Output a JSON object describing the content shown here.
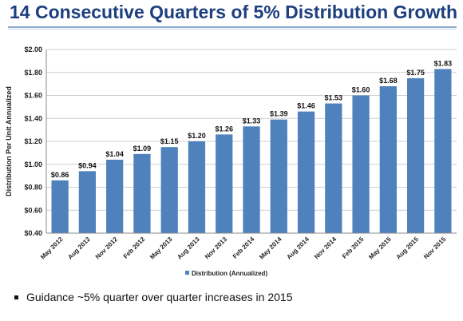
{
  "title": "14 Consecutive Quarters of 5% Distribution Growth",
  "bullet": "Guidance ~5% quarter over quarter increases in 2015",
  "chart_data": {
    "type": "bar",
    "title": "",
    "xlabel": "",
    "ylabel": "Distribution Per Unit Annualized",
    "ylim": [
      0.4,
      2.0
    ],
    "yticks": [
      "$0.40",
      "$0.60",
      "$0.80",
      "$1.00",
      "$1.20",
      "$1.40",
      "$1.60",
      "$1.80",
      "$2.00"
    ],
    "yticks_values": [
      0.4,
      0.6,
      0.8,
      1.0,
      1.2,
      1.4,
      1.6,
      1.8,
      2.0
    ],
    "categories": [
      "May 2012",
      "Aug 2012",
      "Nov 2012",
      "Feb 2012",
      "May 2013",
      "Aug 2013",
      "Nov 2013",
      "Feb 2014",
      "May 2014",
      "Aug 2014",
      "Nov 2014",
      "Feb 2015",
      "May 2015",
      "Aug 2015",
      "Nov 2015"
    ],
    "series": [
      {
        "name": "Distribution (Annualized)",
        "values": [
          0.86,
          0.94,
          1.04,
          1.09,
          1.15,
          1.2,
          1.26,
          1.33,
          1.39,
          1.46,
          1.53,
          1.6,
          1.68,
          1.75,
          1.83
        ],
        "labels": [
          "$0.86",
          "$0.94",
          "$1.04",
          "$1.09",
          "$1.15",
          "$1.20",
          "$1.26",
          "$1.33",
          "$1.39",
          "$1.46",
          "$1.53",
          "$1.60",
          "$1.68",
          "$1.75",
          "$1.83"
        ],
        "color": "#4f81bd"
      }
    ],
    "grid": true,
    "legend": "bottom"
  }
}
